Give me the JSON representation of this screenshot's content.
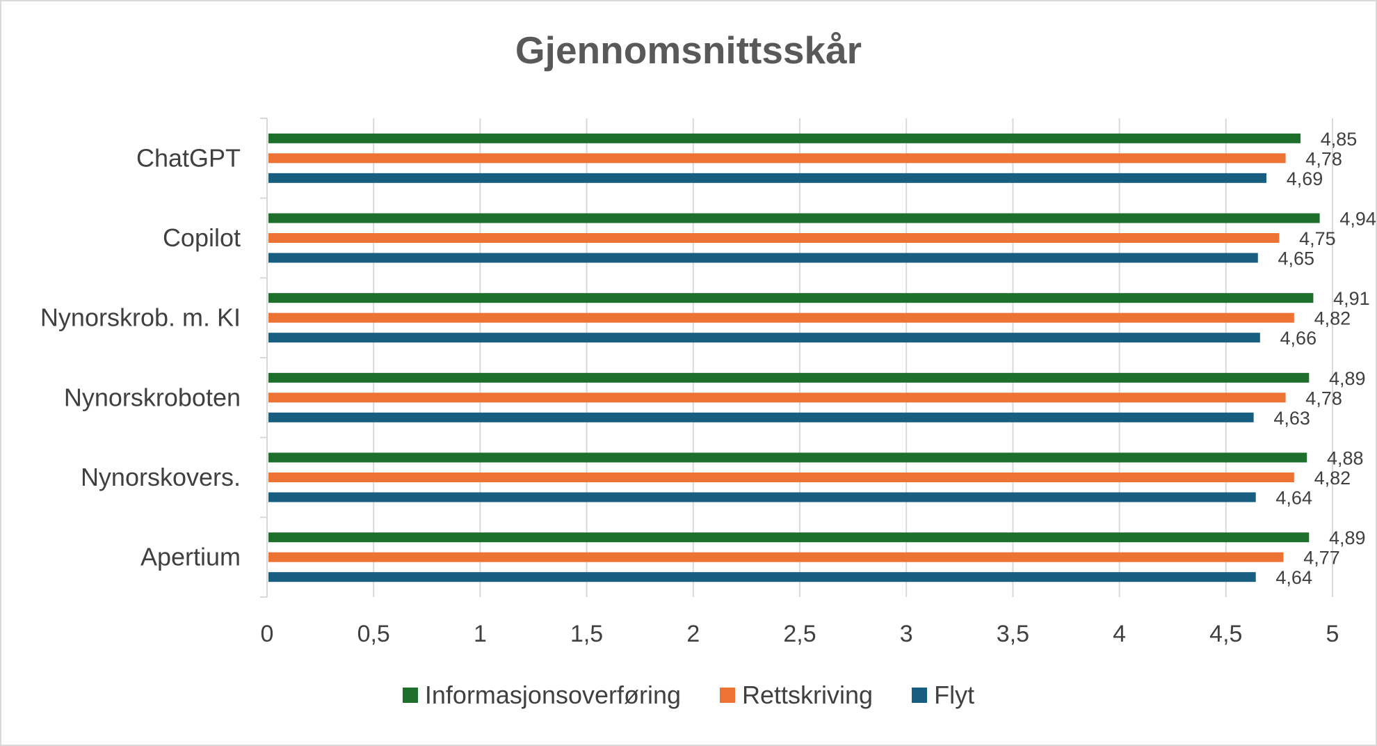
{
  "chart_data": {
    "type": "bar",
    "orientation": "horizontal",
    "title": "Gjennomsnittsskår",
    "categories": [
      "ChatGPT",
      "Copilot",
      "Nynorskrob. m. KI",
      "Nynorskroboten",
      "Nynorskovers.",
      "Apertium"
    ],
    "series": [
      {
        "name": "Informasjonsoverføring",
        "color": "#1e6f2b",
        "values": [
          4.85,
          4.94,
          4.91,
          4.89,
          4.88,
          4.89
        ],
        "labels": [
          "4,85",
          "4,94",
          "4,91",
          "4,89",
          "4,88",
          "4,89"
        ]
      },
      {
        "name": "Rettskriving",
        "color": "#ec7334",
        "values": [
          4.78,
          4.75,
          4.82,
          4.78,
          4.82,
          4.77
        ],
        "labels": [
          "4,78",
          "4,75",
          "4,82",
          "4,78",
          "4,82",
          "4,77"
        ]
      },
      {
        "name": "Flyt",
        "color": "#175e80",
        "values": [
          4.69,
          4.65,
          4.66,
          4.63,
          4.64,
          4.64
        ],
        "labels": [
          "4,69",
          "4,65",
          "4,66",
          "4,63",
          "4,64",
          "4,64"
        ]
      }
    ],
    "xlim": [
      0,
      5
    ],
    "xticks": [
      0,
      0.5,
      1,
      1.5,
      2,
      2.5,
      3,
      3.5,
      4,
      4.5,
      5
    ],
    "xtick_labels": [
      "0",
      "0,5",
      "1",
      "1,5",
      "2",
      "2,5",
      "3",
      "3,5",
      "4",
      "4,5",
      "5"
    ],
    "grid": true,
    "legend_position": "bottom"
  }
}
